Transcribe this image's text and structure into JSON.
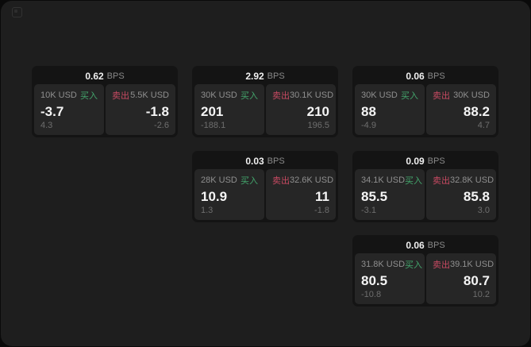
{
  "labels": {
    "bps_unit": "BPS",
    "buy": "买入",
    "sell": "卖出"
  },
  "icons": {
    "top_left": "menu-grid-icon"
  },
  "colors": {
    "surface_bg": "#1e1e1e",
    "card_bg": "#141414",
    "panel_bg": "#262626",
    "buy_green": "#43a56c",
    "sell_red": "#c84a62"
  },
  "cards": [
    {
      "bps": "0.62",
      "buy": {
        "size": "10K USD",
        "value": "-3.7",
        "sub": "4.3"
      },
      "sell": {
        "size": "5.5K USD",
        "value": "-1.8",
        "sub": "-2.6"
      }
    },
    {
      "bps": "2.92",
      "buy": {
        "size": "30K USD",
        "value": "201",
        "sub": "-188.1"
      },
      "sell": {
        "size": "30.1K USD",
        "value": "210",
        "sub": "196.5"
      }
    },
    {
      "bps": "0.06",
      "buy": {
        "size": "30K USD",
        "value": "88",
        "sub": "-4.9"
      },
      "sell": {
        "size": "30K USD",
        "value": "88.2",
        "sub": "4.7"
      }
    },
    {
      "bps": "0.03",
      "buy": {
        "size": "28K USD",
        "value": "10.9",
        "sub": "1.3"
      },
      "sell": {
        "size": "32.6K USD",
        "value": "11",
        "sub": "-1.8"
      }
    },
    {
      "bps": "0.09",
      "buy": {
        "size": "34.1K USD",
        "value": "85.5",
        "sub": "-3.1"
      },
      "sell": {
        "size": "32.8K USD",
        "value": "85.8",
        "sub": "3.0"
      }
    },
    {
      "bps": "0.06",
      "buy": {
        "size": "31.8K USD",
        "value": "80.5",
        "sub": "-10.8"
      },
      "sell": {
        "size": "39.1K USD",
        "value": "80.7",
        "sub": "10.2"
      }
    }
  ]
}
